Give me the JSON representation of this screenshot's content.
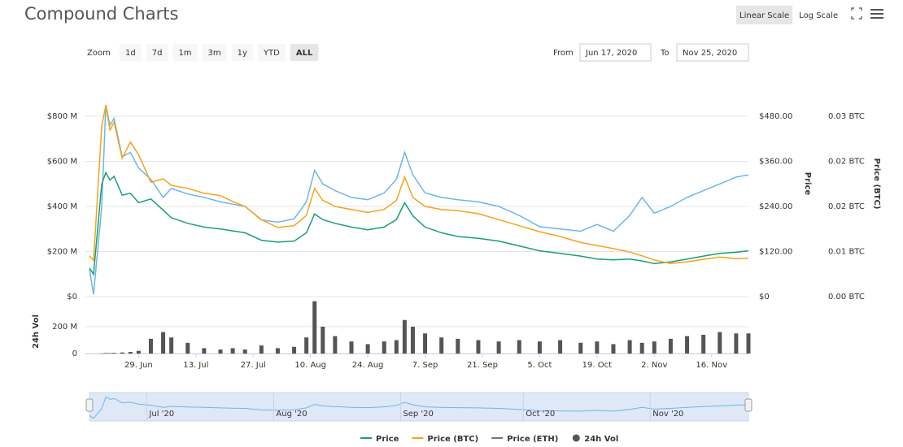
{
  "chart_data": {
    "type": "line",
    "title": "Compound Charts",
    "scale_buttons": [
      "Linear Scale",
      "Log Scale"
    ],
    "log_scale": false,
    "zoom_label": "Zoom",
    "zoom_buttons": [
      "1d",
      "7d",
      "1m",
      "3m",
      "1y",
      "YTD",
      "ALL"
    ],
    "zoom_selected": "ALL",
    "from_label": "From",
    "from": "Jun 17, 2020",
    "to_label": "To",
    "to": "Nov 25, 2020",
    "grid": true,
    "xlim": [
      "2020-06-17",
      "2020-11-25"
    ],
    "x": [
      "2020-06-17",
      "2020-06-18",
      "2020-06-20",
      "2020-06-21",
      "2020-06-22",
      "2020-06-23",
      "2020-06-25",
      "2020-06-27",
      "2020-06-29",
      "2020-07-02",
      "2020-07-05",
      "2020-07-07",
      "2020-07-11",
      "2020-07-15",
      "2020-07-19",
      "2020-07-22",
      "2020-07-25",
      "2020-07-29",
      "2020-08-02",
      "2020-08-06",
      "2020-08-09",
      "2020-08-11",
      "2020-08-13",
      "2020-08-16",
      "2020-08-20",
      "2020-08-24",
      "2020-08-28",
      "2020-08-31",
      "2020-09-02",
      "2020-09-04",
      "2020-09-07",
      "2020-09-11",
      "2020-09-15",
      "2020-09-20",
      "2020-09-25",
      "2020-09-30",
      "2020-10-05",
      "2020-10-10",
      "2020-10-15",
      "2020-10-19",
      "2020-10-23",
      "2020-10-27",
      "2020-10-30",
      "2020-11-02",
      "2020-11-06",
      "2020-11-10",
      "2020-11-14",
      "2020-11-18",
      "2020-11-22",
      "2020-11-25"
    ],
    "xticks": [
      {
        "value": "2020-06-29",
        "label": "29. Jun"
      },
      {
        "value": "2020-07-13",
        "label": "13. Jul"
      },
      {
        "value": "2020-07-27",
        "label": "27. Jul"
      },
      {
        "value": "2020-08-10",
        "label": "10. Aug"
      },
      {
        "value": "2020-08-24",
        "label": "24. Aug"
      },
      {
        "value": "2020-09-07",
        "label": "7. Sep"
      },
      {
        "value": "2020-09-21",
        "label": "21. Sep"
      },
      {
        "value": "2020-10-05",
        "label": "5. Oct"
      },
      {
        "value": "2020-10-19",
        "label": "19. Oct"
      },
      {
        "value": "2020-11-02",
        "label": "2. Nov"
      },
      {
        "value": "2020-11-16",
        "label": "16. Nov"
      }
    ],
    "ylim": [
      0,
      800
    ],
    "yticks": [
      {
        "value": 0,
        "label": "$0"
      },
      {
        "value": 200,
        "label": "$200 M"
      },
      {
        "value": 400,
        "label": "$400 M"
      },
      {
        "value": 600,
        "label": "$600 M"
      },
      {
        "value": 800,
        "label": "$800 M"
      }
    ],
    "y2lim": [
      0,
      480
    ],
    "y2ticks": [
      {
        "value": 0,
        "label": "$0"
      },
      {
        "value": 120,
        "label": "$120.00"
      },
      {
        "value": 240,
        "label": "$240.00"
      },
      {
        "value": 360,
        "label": "$360.00"
      },
      {
        "value": 480,
        "label": "$480.00"
      }
    ],
    "y2_label": "Price",
    "y3lim": [
      0,
      0.03
    ],
    "y3ticks": [
      {
        "value": 0,
        "label": "0.00 BTC"
      },
      {
        "value": 0.0075,
        "label": "0.01 BTC"
      },
      {
        "value": 0.015,
        "label": "0.02 BTC"
      },
      {
        "value": 0.0225,
        "label": "0.02 BTC"
      },
      {
        "value": 0.03,
        "label": "0.03 BTC"
      }
    ],
    "y3_label": "Price (BTC)",
    "series": [
      {
        "color": "#6cb6e8",
        "axis": "y",
        "values": [
          120,
          10,
          400,
          850,
          760,
          790,
          620,
          640,
          570,
          520,
          440,
          480,
          455,
          440,
          420,
          410,
          400,
          340,
          330,
          345,
          420,
          560,
          500,
          470,
          440,
          430,
          460,
          520,
          640,
          540,
          460,
          440,
          430,
          420,
          400,
          360,
          310,
          300,
          290,
          320,
          290,
          360,
          440,
          370,
          400,
          440,
          470,
          500,
          530,
          540
        ]
      },
      {
        "name": "Price",
        "color": "#1a9e76",
        "axis": "y2",
        "values": [
          76,
          60,
          300,
          330,
          310,
          320,
          270,
          275,
          250,
          260,
          230,
          210,
          195,
          185,
          180,
          175,
          170,
          150,
          145,
          148,
          170,
          220,
          205,
          195,
          185,
          178,
          185,
          205,
          250,
          215,
          185,
          170,
          160,
          155,
          148,
          135,
          122,
          115,
          108,
          100,
          98,
          100,
          95,
          88,
          92,
          100,
          108,
          115,
          118,
          122
        ]
      },
      {
        "name": "Price (BTC)",
        "color": "#f7a21b",
        "axis": "y3",
        "values": [
          0.0068,
          0.006,
          0.0284,
          0.0318,
          0.0277,
          0.029,
          0.023,
          0.0257,
          0.0236,
          0.019,
          0.0196,
          0.0185,
          0.018,
          0.0172,
          0.0168,
          0.0158,
          0.015,
          0.0128,
          0.0115,
          0.0118,
          0.0135,
          0.018,
          0.016,
          0.015,
          0.0145,
          0.014,
          0.0145,
          0.016,
          0.0199,
          0.0165,
          0.015,
          0.0145,
          0.0143,
          0.0138,
          0.0128,
          0.0118,
          0.0108,
          0.01,
          0.009,
          0.0085,
          0.008,
          0.0074,
          0.0068,
          0.0061,
          0.0055,
          0.0058,
          0.0062,
          0.0066,
          0.0063,
          0.0064
        ]
      },
      {
        "name": "Price (ETH)",
        "color": "#777777",
        "visible": false
      }
    ],
    "volume": {
      "name": "24h Vol",
      "color": "#555555",
      "y_label": "24h Vol",
      "ylim": [
        0,
        400
      ],
      "yticks": [
        0,
        {
          "value": 200,
          "label": "200 M"
        }
      ],
      "values": [
        0,
        0,
        2,
        4,
        3,
        5,
        8,
        12,
        20,
        110,
        160,
        120,
        80,
        40,
        30,
        40,
        30,
        60,
        40,
        50,
        120,
        390,
        200,
        130,
        90,
        70,
        90,
        100,
        250,
        200,
        150,
        120,
        110,
        100,
        90,
        100,
        90,
        100,
        80,
        90,
        70,
        100,
        80,
        90,
        110,
        130,
        140,
        160,
        150,
        150
      ]
    },
    "navigator": {
      "xticks": [
        {
          "value": "2020-07-01",
          "label": "Jul '20"
        },
        {
          "value": "2020-08-01",
          "label": "Aug '20"
        },
        {
          "value": "2020-09-01",
          "label": "Sep '20"
        },
        {
          "value": "2020-10-01",
          "label": "Oct '20"
        },
        {
          "value": "2020-11-01",
          "label": "Nov '20"
        }
      ]
    }
  }
}
